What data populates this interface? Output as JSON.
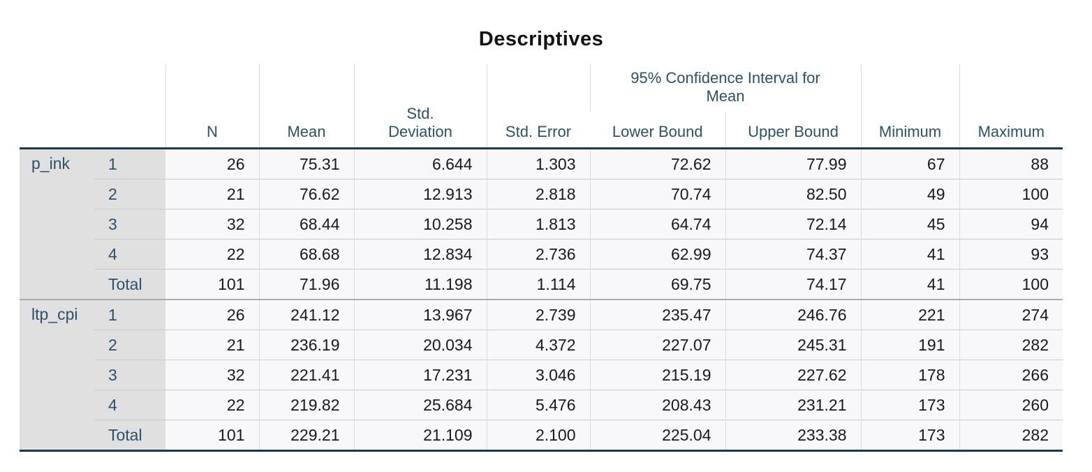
{
  "title": "Descriptives",
  "table": {
    "span_header": "95% Confidence Interval for Mean",
    "columns": {
      "n": "N",
      "mean": "Mean",
      "std_deviation": "Std. Deviation",
      "std_error": "Std. Error",
      "lower_bound": "Lower Bound",
      "upper_bound": "Upper Bound",
      "minimum": "Minimum",
      "maximum": "Maximum"
    },
    "groups": [
      {
        "label": "p_ink",
        "rows": [
          {
            "level": "1",
            "cells": [
              "26",
              "75.31",
              "6.644",
              "1.303",
              "72.62",
              "77.99",
              "67",
              "88"
            ]
          },
          {
            "level": "2",
            "cells": [
              "21",
              "76.62",
              "12.913",
              "2.818",
              "70.74",
              "82.50",
              "49",
              "100"
            ]
          },
          {
            "level": "3",
            "cells": [
              "32",
              "68.44",
              "10.258",
              "1.813",
              "64.74",
              "72.14",
              "45",
              "94"
            ]
          },
          {
            "level": "4",
            "cells": [
              "22",
              "68.68",
              "12.834",
              "2.736",
              "62.99",
              "74.37",
              "41",
              "93"
            ]
          },
          {
            "level": "Total",
            "cells": [
              "101",
              "71.96",
              "11.198",
              "1.114",
              "69.75",
              "74.17",
              "41",
              "100"
            ]
          }
        ]
      },
      {
        "label": "ltp_cpi",
        "rows": [
          {
            "level": "1",
            "cells": [
              "26",
              "241.12",
              "13.967",
              "2.739",
              "235.47",
              "246.76",
              "221",
              "274"
            ]
          },
          {
            "level": "2",
            "cells": [
              "21",
              "236.19",
              "20.034",
              "4.372",
              "227.07",
              "245.31",
              "191",
              "282"
            ]
          },
          {
            "level": "3",
            "cells": [
              "32",
              "221.41",
              "17.231",
              "3.046",
              "215.19",
              "227.62",
              "178",
              "266"
            ]
          },
          {
            "level": "4",
            "cells": [
              "22",
              "219.82",
              "25.684",
              "5.476",
              "208.43",
              "231.21",
              "173",
              "260"
            ]
          },
          {
            "level": "Total",
            "cells": [
              "101",
              "229.21",
              "21.109",
              "2.100",
              "225.04",
              "233.38",
              "173",
              "282"
            ]
          }
        ]
      }
    ]
  },
  "colors": {
    "header_text": "#2c5168",
    "thick_rule": "#1c3a4e",
    "stub_background": "#e0e0e0",
    "cell_background": "#f8f8fa",
    "row_separator": "#c9c9c9",
    "group_separator": "#ababab",
    "data_text": "#191919"
  }
}
